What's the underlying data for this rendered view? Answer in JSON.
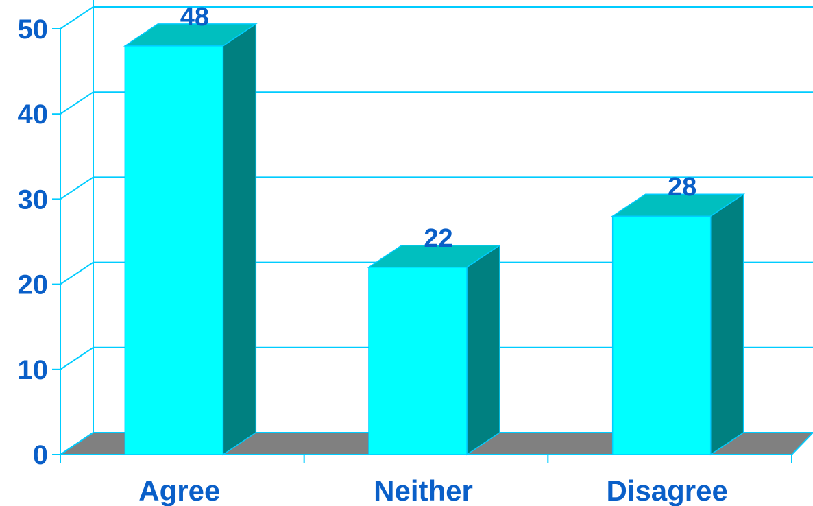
{
  "chart_data": {
    "type": "bar",
    "categories": [
      "Agree",
      "Neither",
      "Disagree"
    ],
    "values": [
      48,
      22,
      28
    ],
    "data_labels": [
      "48",
      "22",
      "28"
    ],
    "ylim": [
      0,
      50
    ],
    "yticks": [
      0,
      10,
      20,
      30,
      40,
      50
    ],
    "ytick_labels": [
      "0",
      "10",
      "20",
      "30",
      "40",
      "50"
    ],
    "grid": true,
    "style": "3d-bar",
    "colors": {
      "bar_front": "#00FFFF",
      "bar_top": "#00BFBF",
      "bar_side": "#008080",
      "floor": "#808080",
      "grid": "#00CCFF",
      "text": "#0A5FC8"
    }
  }
}
